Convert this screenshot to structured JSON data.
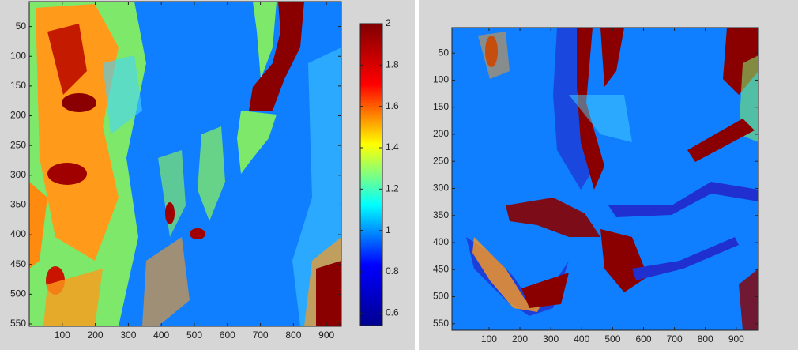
{
  "chart_data": [
    {
      "type": "heatmap",
      "colormap": "jet",
      "yreverse": true,
      "xlim": [
        0,
        945
      ],
      "ylim": [
        8,
        554
      ],
      "xticks": [
        100,
        200,
        300,
        400,
        500,
        600,
        700,
        800,
        900
      ],
      "yticks": [
        50,
        100,
        150,
        200,
        250,
        300,
        350,
        400,
        450,
        500,
        550
      ],
      "colorbar": {
        "lim": [
          0.54,
          2
        ],
        "ticks": [
          0.6,
          0.8,
          1,
          1.2,
          1.4,
          1.6,
          1.8,
          2
        ]
      }
    },
    {
      "type": "heatmap",
      "colormap": "jet",
      "yreverse": true,
      "xlim": [
        -20,
        972
      ],
      "ylim": [
        3,
        562
      ],
      "xticks": [
        100,
        200,
        300,
        400,
        500,
        600,
        700,
        800,
        900
      ],
      "yticks": [
        50,
        100,
        150,
        200,
        250,
        300,
        350,
        400,
        450,
        500,
        550
      ]
    }
  ]
}
